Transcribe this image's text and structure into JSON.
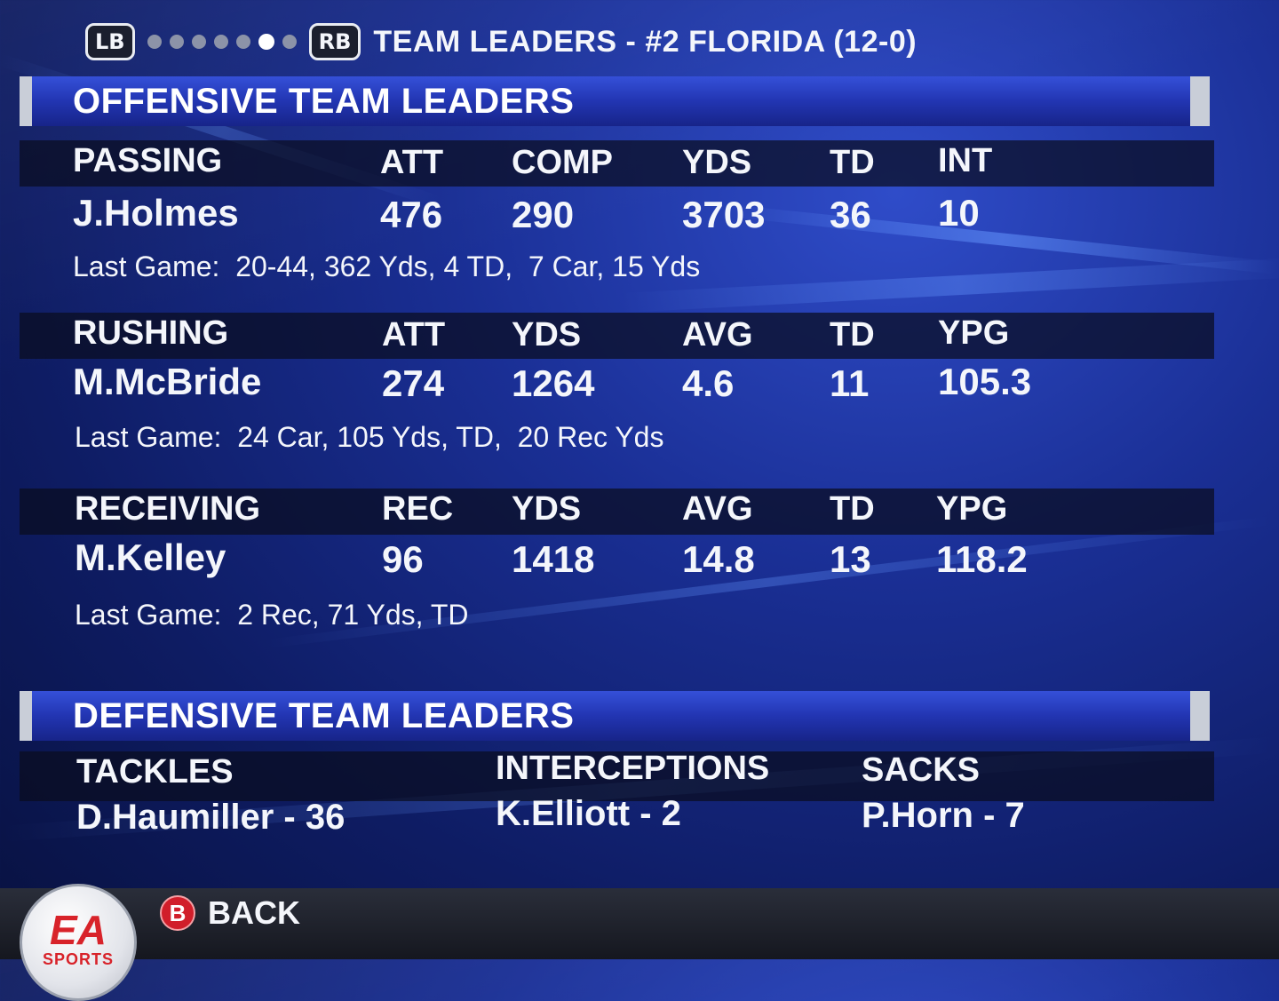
{
  "nav": {
    "lb_label": "LB",
    "rb_label": "RB",
    "page_count": 7,
    "active_page": 6,
    "title": "TEAM LEADERS - #2 FLORIDA (12-0)"
  },
  "offense": {
    "header": "OFFENSIVE TEAM LEADERS",
    "passing": {
      "category": "PASSING",
      "columns": [
        "ATT",
        "COMP",
        "YDS",
        "TD",
        "INT"
      ],
      "player": "J.Holmes",
      "values": [
        "476",
        "290",
        "3703",
        "36",
        "10"
      ],
      "last_game": "Last Game:  20-44, 362 Yds, 4 TD,  7 Car, 15 Yds"
    },
    "rushing": {
      "category": "RUSHING",
      "columns": [
        "ATT",
        "YDS",
        "AVG",
        "TD",
        "YPG"
      ],
      "player": "M.McBride",
      "values": [
        "274",
        "1264",
        "4.6",
        "11",
        "105.3"
      ],
      "last_game": "Last Game:  24 Car, 105 Yds, TD,  20 Rec Yds"
    },
    "receiving": {
      "category": "RECEIVING",
      "columns": [
        "REC",
        "YDS",
        "AVG",
        "TD",
        "YPG"
      ],
      "player": "M.Kelley",
      "values": [
        "96",
        "1418",
        "14.8",
        "13",
        "118.2"
      ],
      "last_game": "Last Game:  2 Rec, 71 Yds, TD"
    }
  },
  "defense": {
    "header": "DEFENSIVE TEAM LEADERS",
    "tackles": {
      "label": "TACKLES",
      "value": "D.Haumiller - 36"
    },
    "interceptions": {
      "label": "INTERCEPTIONS",
      "value": "K.Elliott - 2"
    },
    "sacks": {
      "label": "SACKS",
      "value": "P.Horn - 7"
    }
  },
  "footer": {
    "logo_text": "EA",
    "logo_sub": "SPORTS",
    "back_button_glyph": "B",
    "back_label": "BACK"
  },
  "colors": {
    "back_button": "#d11e2a",
    "section_header": "#2235b2"
  }
}
